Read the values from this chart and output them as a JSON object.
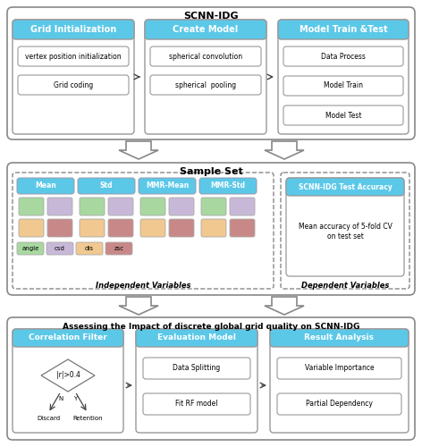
{
  "background": "#FFFFFF",
  "blue": "#5BC8E8",
  "white": "#FFFFFF",
  "section1_title": "SCNN-IDG",
  "section2_title": "Sample Set",
  "section3_title": "Assessing the Impact of discrete global grid quality on SCNN-IDG",
  "block1_headers": [
    "Grid Initialization",
    "Create Model",
    "Model Train &Test"
  ],
  "block1_sub1": [
    "vertex position initialization",
    "Grid coding"
  ],
  "block1_sub2": [
    "spherical convolution",
    "spherical  pooling"
  ],
  "block1_sub3": [
    "Data Process",
    "Model Train",
    "Model Test"
  ],
  "block2_headers": [
    "Mean",
    "Std",
    "MMR-Mean",
    "MMR-Std"
  ],
  "block2_dep_header": "SCNN-IDG Test Accuracy",
  "block2_dep_text": "Mean accuracy of 5-fold CV\non test set",
  "block2_labels": [
    "angle",
    "csd",
    "dis",
    "zsc"
  ],
  "block2_label_colors": [
    "#A8D8A0",
    "#C8B8D8",
    "#F0C890",
    "#C88888"
  ],
  "block3_headers": [
    "Correlation Filter",
    "Evaluation Model",
    "Result Analysis"
  ],
  "block3_diamond": "|r|>0.4",
  "block3_sub2": [
    "Data Splitting",
    "Fit RF model"
  ],
  "block3_sub3": [
    "Variable Importance",
    "Partial Dependency"
  ],
  "ind_label": "Independent Variables",
  "dep_label": "Dependent Variables",
  "col_green": "#A8D8A0",
  "col_purple": "#C8B8D8",
  "col_orange": "#F0C890",
  "col_red": "#C88888"
}
